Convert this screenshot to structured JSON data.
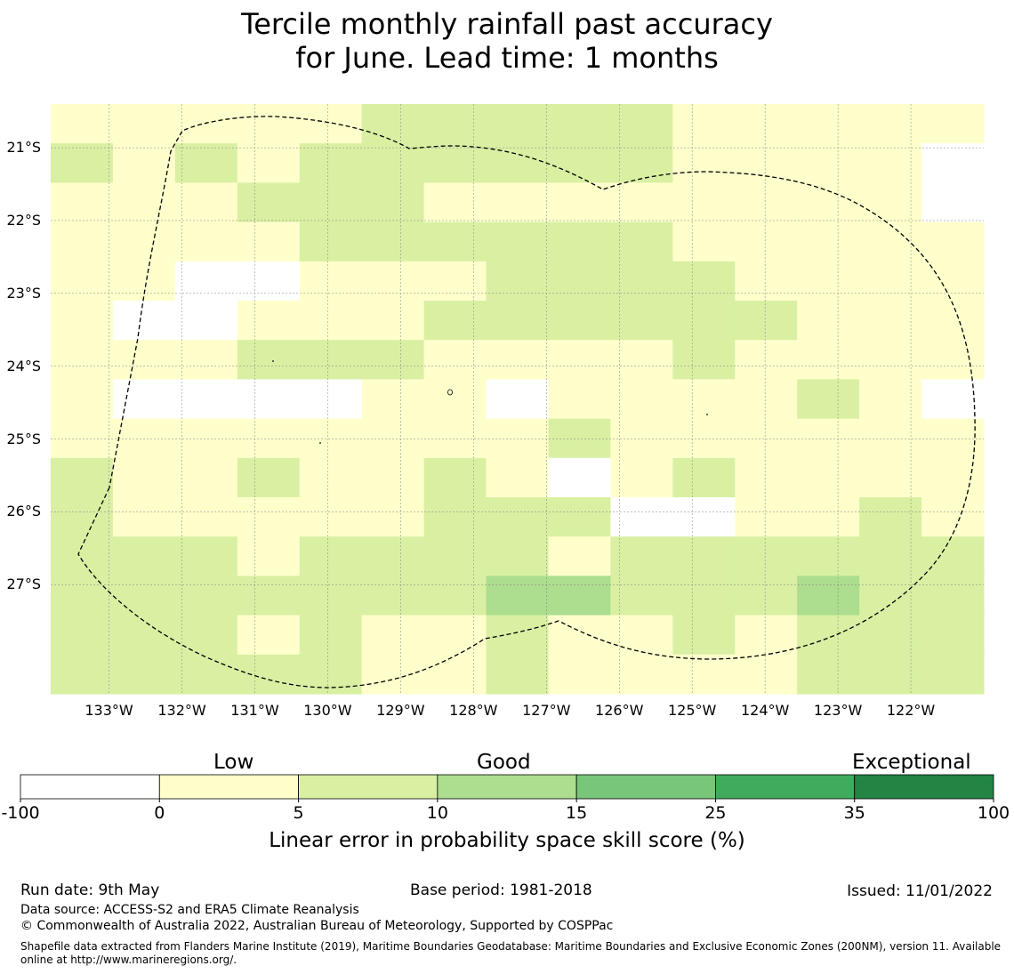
{
  "title": {
    "line1": "Tercile monthly rainfall past accuracy",
    "line2": "for June. Lead time: 1 months"
  },
  "map": {
    "lat_labels": [
      "21°S",
      "22°S",
      "23°S",
      "24°S",
      "25°S",
      "26°S",
      "27°S"
    ],
    "lat_values": [
      -21,
      -22,
      -23,
      -24,
      -25,
      -26,
      -27
    ],
    "lon_labels": [
      "133°W",
      "132°W",
      "131°W",
      "130°W",
      "129°W",
      "128°W",
      "127°W",
      "126°W",
      "125°W",
      "124°W",
      "123°W",
      "122°W"
    ],
    "lon_values": [
      -133,
      -132,
      -131,
      -130,
      -129,
      -128,
      -127,
      -126,
      -125,
      -124,
      -123,
      -122
    ],
    "extent": {
      "lon_min": -133.8,
      "lon_max": -121.0,
      "lat_min": -28.5,
      "lat_max": -20.4
    },
    "grid_cols": 15,
    "grid_rows": 15,
    "grid": [
      "111112222211111",
      "212122222211110",
      "111222111111110",
      "111122222211111",
      "110011122221111",
      "100111222222111",
      "111222111121111",
      "100001101111210",
      "111111112111111",
      "211211210121111",
      "211111222001121",
      "222122221222222",
      "222222233222322",
      "222121121121222",
      "222221121111222"
    ],
    "zone_outline_color": "#000000"
  },
  "colorbar": {
    "headers": [
      "Low",
      "Good",
      "Exceptional"
    ],
    "ticks": [
      "-100",
      "0",
      "5",
      "10",
      "15",
      "25",
      "35",
      "100"
    ],
    "colors": [
      "#ffffff",
      "#ffffcc",
      "#d9f0a3",
      "#addd8e",
      "#78c679",
      "#41ab5d",
      "#238443"
    ],
    "label": "Linear error in probability space skill score (%)"
  },
  "footer": {
    "run_date": "Run date: 9th May",
    "base_period": "Base period: 1981-2018",
    "issued": "Issued: 11/01/2022",
    "data_source": "Data source: ACCESS-S2 and ERA5 Climate Reanalysis",
    "copyright": "© Commonwealth of Australia 2022, Australian Bureau of Meteorology, Supported by COSPPac",
    "shapefile": "Shapefile data extracted from Flanders Marine Institute (2019), Maritime Boundaries Geodatabase: Maritime Boundaries and Exclusive Economic Zones (200NM), version 11. Available online at http://www.marineregions.org/."
  }
}
